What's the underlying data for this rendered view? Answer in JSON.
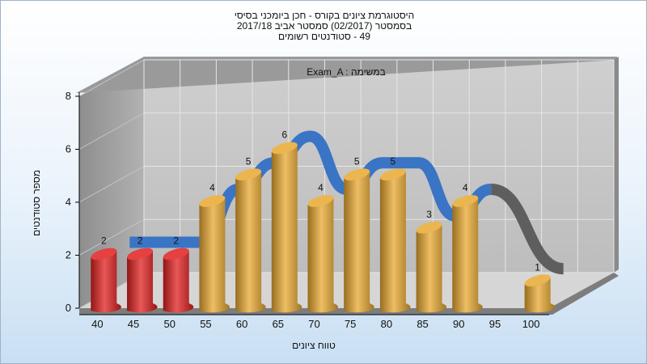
{
  "title_lines": [
    "היסטוגרמת ציונים בקורס - חכן ביומכני בסיסי",
    "בסמסטר  (02/2017)  סמסטר אביב 2017/18",
    "49 - סטודנטים רשומים"
  ],
  "chart_data": {
    "type": "bar",
    "title": "היסטוגרמת ציונים בקורס - חכן ביומכני בסיסי",
    "annotation": "Exam_A : במשימה",
    "xlabel": "טווח ציונים",
    "ylabel": "מספר סטודנטים",
    "ylim": [
      0,
      8
    ],
    "yticks": [
      0,
      2,
      4,
      6,
      8
    ],
    "grid": true,
    "bar_style": "3d-cylinder",
    "categories": [
      "40",
      "45",
      "50",
      "55",
      "60",
      "65",
      "70",
      "75",
      "80",
      "85",
      "90",
      "95",
      "100"
    ],
    "values": [
      2,
      2,
      2,
      4,
      5,
      6,
      4,
      5,
      5,
      3,
      4,
      null,
      1
    ],
    "data_labels": [
      "2",
      "2",
      "2",
      "4",
      "5",
      "6",
      "4",
      "5",
      "5",
      "3",
      "4",
      "",
      "1"
    ],
    "bar_colors": [
      "#e02020",
      "#e02020",
      "#e02020",
      "#e8a830",
      "#e8a830",
      "#e8a830",
      "#e8a830",
      "#e8a830",
      "#e8a830",
      "#e8a830",
      "#e8a830",
      "#e8a830",
      "#e8a830"
    ],
    "ribbon_colors": {
      "main": "#3a74c4",
      "tail": "#5e5e5e"
    }
  }
}
